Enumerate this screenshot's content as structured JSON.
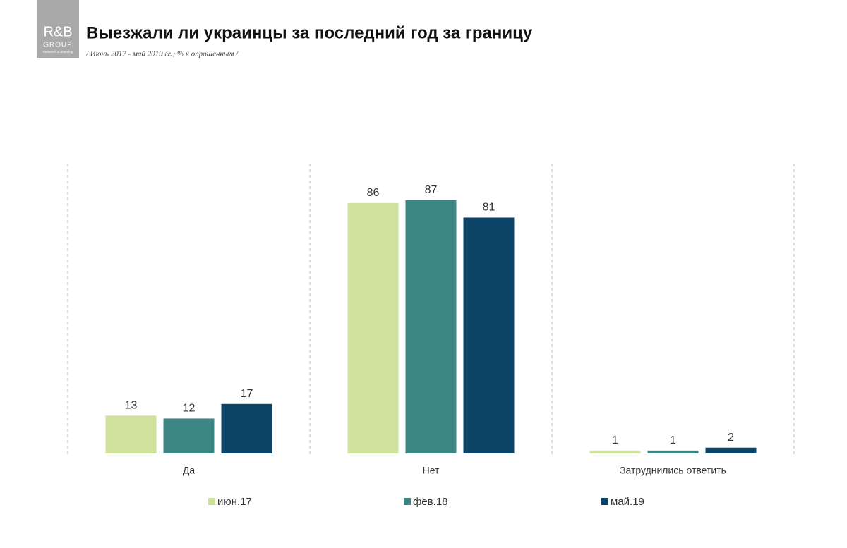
{
  "logo": {
    "line1": "R&B",
    "line2": "GROUP",
    "line3": "Research & Branding"
  },
  "chart_data": {
    "type": "bar",
    "title": "Выезжали ли украинцы за последний год за границу",
    "subtitle": "/ Июнь 2017 - май 2019 гг.; % к опрошенным /",
    "categories": [
      "Да",
      "Нет",
      "Затруднились ответить"
    ],
    "series": [
      {
        "name": "июн.17",
        "color": "#cfe29c",
        "values": [
          13,
          86,
          1
        ]
      },
      {
        "name": "фев.18",
        "color": "#3d8582",
        "values": [
          12,
          87,
          1
        ]
      },
      {
        "name": "май.19",
        "color": "#0b4466",
        "values": [
          17,
          81,
          2
        ]
      }
    ]
  }
}
